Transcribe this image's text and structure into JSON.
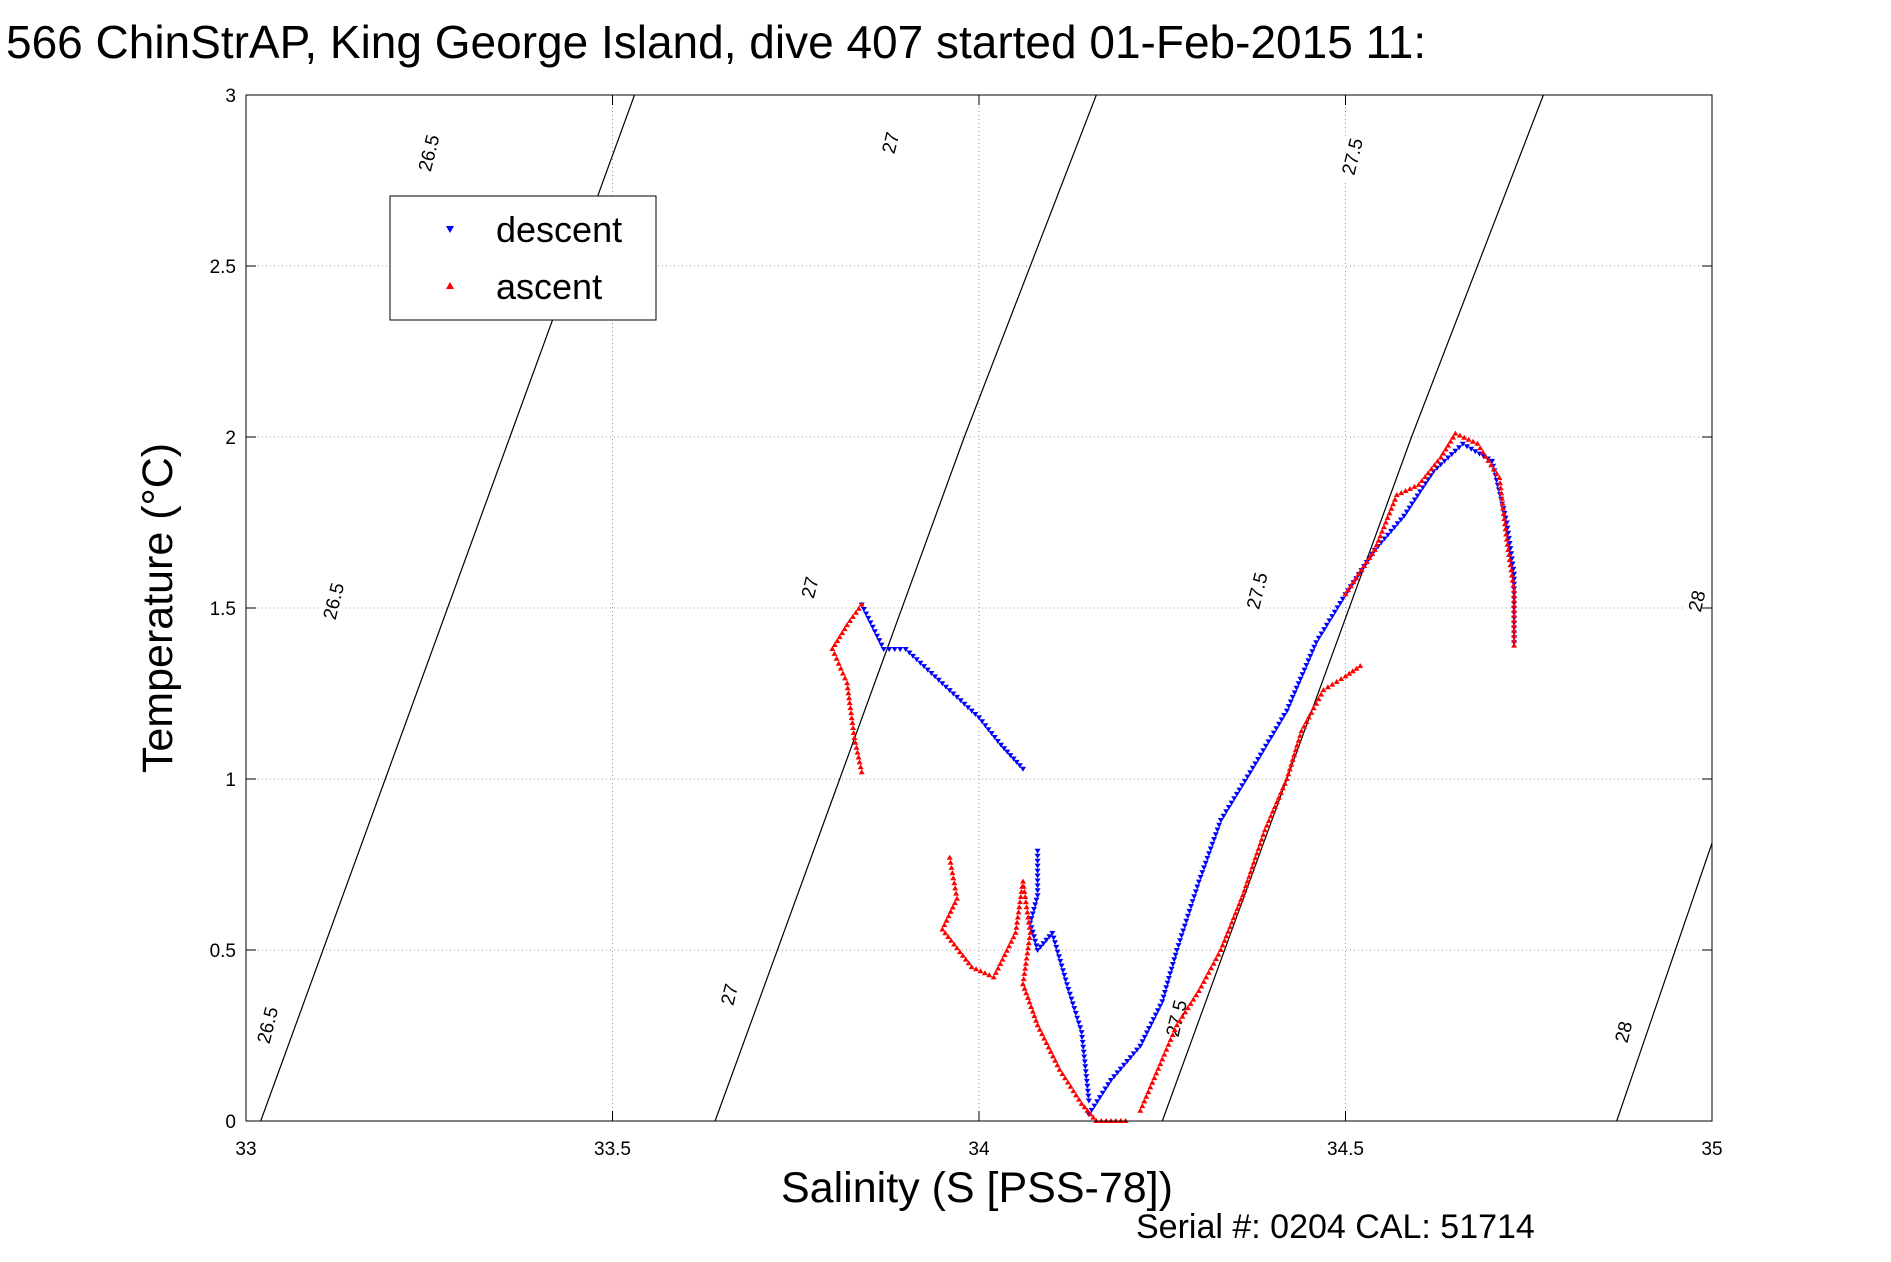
{
  "chart_data": {
    "type": "scatter",
    "title": "566 ChinStrAP, King George Island, dive 407 started 01-Feb-2015 11:",
    "xlabel": "Salinity (S [PSS-78])",
    "ylabel": "Temperature (°C)",
    "footer": "Serial #: 0204  CAL: 51714",
    "xlim": [
      33,
      35
    ],
    "ylim": [
      0,
      3
    ],
    "xticks": [
      33,
      33.5,
      34,
      34.5,
      35
    ],
    "yticks": [
      0,
      0.5,
      1,
      1.5,
      2,
      2.5,
      3
    ],
    "xtick_labels": [
      "33",
      "33.5",
      "34",
      "34.5",
      "35"
    ],
    "ytick_labels": [
      "0",
      "0.5",
      "1",
      "1.5",
      "2",
      "2.5",
      "3"
    ],
    "grid": true,
    "legend_position": "top-left",
    "colors": {
      "descent": "#0000ff",
      "ascent": "#ff0000",
      "contour": "#000000",
      "grid": "#999999"
    },
    "density_contours": [
      {
        "label": "26.5",
        "points": [
          [
            33.02,
            0
          ],
          [
            33.19,
            1
          ],
          [
            33.36,
            2
          ],
          [
            33.53,
            3
          ]
        ]
      },
      {
        "label": "27",
        "points": [
          [
            33.64,
            0
          ],
          [
            33.81,
            1
          ],
          [
            33.98,
            2
          ],
          [
            34.16,
            3
          ]
        ]
      },
      {
        "label": "27.5",
        "points": [
          [
            34.25,
            0
          ],
          [
            34.42,
            1
          ],
          [
            34.59,
            2
          ],
          [
            34.77,
            3
          ]
        ]
      },
      {
        "label": "28",
        "points": [
          [
            34.87,
            0
          ],
          [
            35.03,
            1
          ],
          [
            35.2,
            2
          ],
          [
            35.37,
            3
          ]
        ]
      }
    ],
    "contour_labels": [
      {
        "text": "26.5",
        "s": 33.25,
        "t": 2.83
      },
      {
        "text": "26.5",
        "s": 33.12,
        "t": 1.52
      },
      {
        "text": "26.5",
        "s": 33.03,
        "t": 0.28
      },
      {
        "text": "27",
        "s": 33.88,
        "t": 2.86
      },
      {
        "text": "27",
        "s": 33.77,
        "t": 1.56
      },
      {
        "text": "27",
        "s": 33.66,
        "t": 0.37
      },
      {
        "text": "27.5",
        "s": 34.51,
        "t": 2.82
      },
      {
        "text": "27.5",
        "s": 34.38,
        "t": 1.55
      },
      {
        "text": "27.5",
        "s": 34.27,
        "t": 0.3
      },
      {
        "text": "28",
        "s": 34.98,
        "t": 1.52
      },
      {
        "text": "28",
        "s": 34.88,
        "t": 0.26
      }
    ],
    "series": [
      {
        "name": "descent",
        "marker": "triangle-down",
        "segments": [
          [
            [
              33.84,
              1.51
            ],
            [
              33.87,
              1.38
            ],
            [
              33.9,
              1.38
            ],
            [
              33.93,
              1.32
            ],
            [
              33.97,
              1.24
            ],
            [
              34.0,
              1.18
            ],
            [
              34.03,
              1.1
            ],
            [
              34.06,
              1.03
            ]
          ],
          [
            [
              34.08,
              0.79
            ],
            [
              34.08,
              0.66
            ],
            [
              34.07,
              0.58
            ],
            [
              34.08,
              0.5
            ],
            [
              34.1,
              0.55
            ],
            [
              34.12,
              0.4
            ],
            [
              34.14,
              0.26
            ],
            [
              34.15,
              0.06
            ]
          ],
          [
            [
              34.15,
              0.02
            ],
            [
              34.18,
              0.12
            ],
            [
              34.22,
              0.22
            ],
            [
              34.25,
              0.35
            ],
            [
              34.27,
              0.5
            ],
            [
              34.3,
              0.7
            ],
            [
              34.33,
              0.88
            ],
            [
              34.37,
              1.02
            ],
            [
              34.42,
              1.2
            ],
            [
              34.46,
              1.4
            ],
            [
              34.5,
              1.54
            ],
            [
              34.54,
              1.67
            ],
            [
              34.58,
              1.77
            ],
            [
              34.62,
              1.9
            ],
            [
              34.66,
              1.98
            ],
            [
              34.7,
              1.93
            ],
            [
              34.72,
              1.75
            ],
            [
              34.73,
              1.6
            ],
            [
              34.73,
              1.4
            ]
          ]
        ]
      },
      {
        "name": "ascent",
        "marker": "triangle-up",
        "segments": [
          [
            [
              33.84,
              1.51
            ],
            [
              33.82,
              1.45
            ],
            [
              33.8,
              1.38
            ],
            [
              33.82,
              1.28
            ],
            [
              33.83,
              1.12
            ],
            [
              33.84,
              1.02
            ]
          ],
          [
            [
              33.96,
              0.77
            ],
            [
              33.97,
              0.65
            ],
            [
              33.95,
              0.56
            ],
            [
              33.99,
              0.45
            ],
            [
              34.02,
              0.42
            ],
            [
              34.05,
              0.55
            ],
            [
              34.06,
              0.7
            ],
            [
              34.07,
              0.55
            ],
            [
              34.06,
              0.4
            ],
            [
              34.08,
              0.28
            ],
            [
              34.11,
              0.15
            ],
            [
              34.14,
              0.05
            ],
            [
              34.16,
              0.0
            ],
            [
              34.2,
              0.0
            ]
          ],
          [
            [
              34.22,
              0.03
            ],
            [
              34.25,
              0.18
            ],
            [
              34.27,
              0.28
            ],
            [
              34.3,
              0.38
            ],
            [
              34.33,
              0.5
            ],
            [
              34.36,
              0.66
            ],
            [
              34.39,
              0.85
            ],
            [
              34.42,
              1.0
            ],
            [
              34.44,
              1.14
            ],
            [
              34.47,
              1.26
            ],
            [
              34.5,
              1.3
            ],
            [
              34.52,
              1.33
            ]
          ],
          [
            [
              34.5,
              1.54
            ],
            [
              34.54,
              1.67
            ],
            [
              34.57,
              1.83
            ],
            [
              34.6,
              1.86
            ],
            [
              34.63,
              1.94
            ],
            [
              34.65,
              2.01
            ],
            [
              34.68,
              1.98
            ],
            [
              34.71,
              1.88
            ],
            [
              34.72,
              1.7
            ],
            [
              34.73,
              1.55
            ],
            [
              34.73,
              1.39
            ]
          ]
        ]
      }
    ]
  }
}
